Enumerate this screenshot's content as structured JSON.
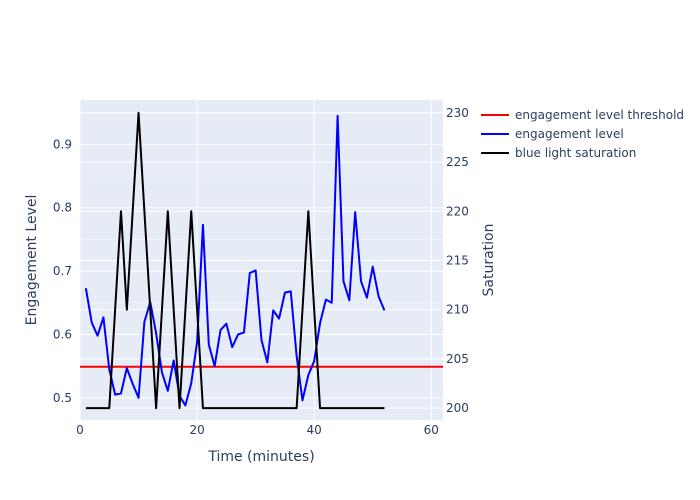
{
  "chart_data": {
    "type": "line",
    "xlabel": "Time (minutes)",
    "ylabel": "Engagement Level",
    "y2label": "Saturation",
    "xlim": [
      0,
      62
    ],
    "ylim": [
      0.465,
      0.97
    ],
    "y2lim": [
      198.8,
      231.3
    ],
    "xticks": [
      0,
      20,
      40,
      60
    ],
    "yticks": [
      0.5,
      0.6,
      0.7,
      0.8,
      0.9
    ],
    "y2ticks": [
      200,
      205,
      210,
      215,
      220,
      225,
      230
    ],
    "grid": true,
    "legend_position": "top-right",
    "series": [
      {
        "name": "engagement level threshold",
        "axis": "y",
        "color": "#ff0000",
        "x": [
          0,
          62
        ],
        "values": [
          0.549,
          0.549
        ]
      },
      {
        "name": "engagement level",
        "axis": "y",
        "color": "#0000ff",
        "x": [
          1,
          2,
          3,
          4,
          5,
          6,
          7,
          8,
          9,
          10,
          11,
          12,
          13,
          14,
          15,
          16,
          17,
          18,
          19,
          20,
          21,
          22,
          23,
          24,
          25,
          26,
          27,
          28,
          29,
          30,
          31,
          32,
          33,
          34,
          35,
          36,
          37,
          38,
          39,
          40,
          41,
          42,
          43,
          44,
          45,
          46,
          47,
          48,
          49,
          50,
          51,
          52
        ],
        "values": [
          0.673,
          0.619,
          0.598,
          0.627,
          0.545,
          0.505,
          0.507,
          0.547,
          0.522,
          0.5,
          0.62,
          0.651,
          0.602,
          0.54,
          0.511,
          0.559,
          0.503,
          0.488,
          0.523,
          0.588,
          0.773,
          0.584,
          0.55,
          0.607,
          0.617,
          0.58,
          0.6,
          0.603,
          0.697,
          0.701,
          0.591,
          0.556,
          0.638,
          0.625,
          0.666,
          0.668,
          0.566,
          0.496,
          0.536,
          0.558,
          0.618,
          0.655,
          0.65,
          0.945,
          0.684,
          0.654,
          0.793,
          0.684,
          0.658,
          0.707,
          0.66,
          0.638
        ]
      },
      {
        "name": "blue light saturation",
        "axis": "y2",
        "color": "#000000",
        "x": [
          1,
          2,
          3,
          4,
          5,
          6,
          7,
          8,
          9,
          10,
          11,
          12,
          13,
          14,
          15,
          16,
          17,
          18,
          19,
          20,
          21,
          22,
          23,
          24,
          25,
          26,
          27,
          28,
          29,
          30,
          31,
          32,
          33,
          34,
          35,
          36,
          37,
          38,
          39,
          40,
          41,
          42,
          43,
          44,
          45,
          46,
          47,
          48,
          49,
          50,
          51,
          52
        ],
        "values": [
          200,
          200,
          200,
          200,
          200,
          210,
          220,
          210,
          220,
          230,
          220,
          210,
          200,
          210,
          220,
          210,
          200,
          210,
          220,
          210,
          200,
          200,
          200,
          200,
          200,
          200,
          200,
          200,
          200,
          200,
          200,
          200,
          200,
          200,
          200,
          200,
          200,
          210,
          220,
          210,
          200,
          200,
          200,
          200,
          200,
          200,
          200,
          200,
          200,
          200,
          200,
          200
        ]
      }
    ]
  }
}
